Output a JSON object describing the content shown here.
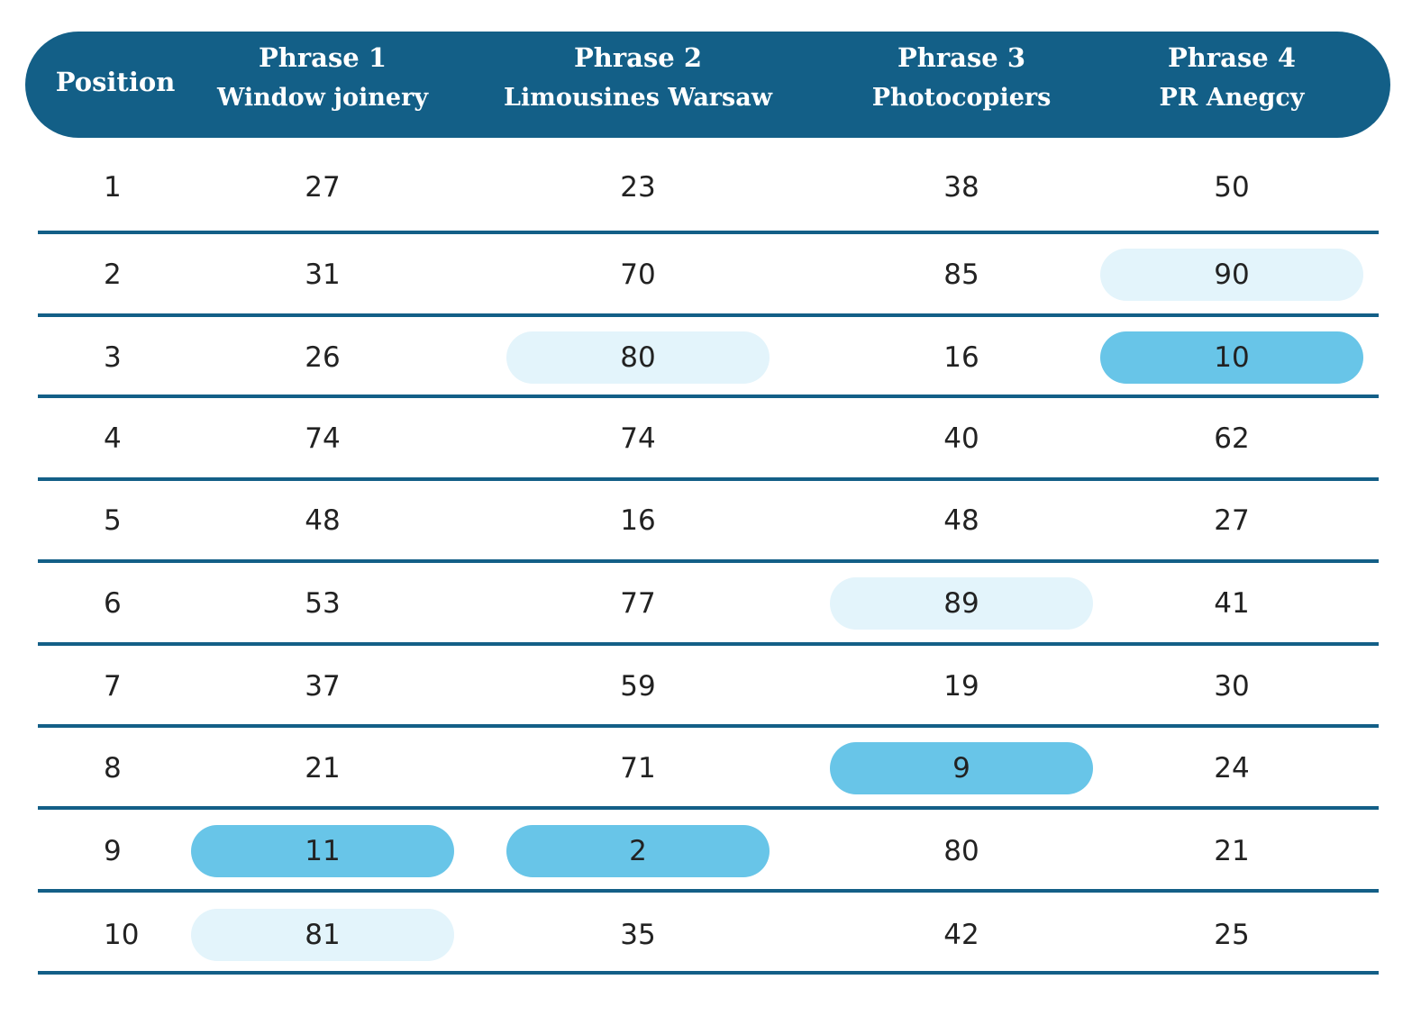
{
  "table": {
    "header": [
      {
        "title": "Position"
      },
      {
        "title": "Phrase 1",
        "subtitle": "Window joinery"
      },
      {
        "title": "Phrase 2",
        "subtitle": "Limousines Warsaw"
      },
      {
        "title": "Phrase 3",
        "subtitle": "Photocopiers"
      },
      {
        "title": "Phrase 4",
        "subtitle": "PR Anegcy"
      }
    ],
    "rows": [
      [
        "1",
        "27",
        "23",
        "38",
        "50"
      ],
      [
        "2",
        "31",
        "70",
        "85",
        {
          "text": "90",
          "fill": "#e3f4fb"
        }
      ],
      [
        "3",
        "26",
        {
          "text": "80",
          "fill": "#e3f4fb"
        },
        "16",
        {
          "text": "10",
          "fill": "#68c5e8"
        }
      ],
      [
        "4",
        "74",
        "74",
        "40",
        "62"
      ],
      [
        "5",
        "48",
        "16",
        "48",
        "27"
      ],
      [
        "6",
        "53",
        "77",
        {
          "text": "89",
          "fill": "#e3f4fb"
        },
        "41"
      ],
      [
        "7",
        "37",
        "59",
        "19",
        "30"
      ],
      [
        "8",
        "21",
        "71",
        {
          "text": "9",
          "fill": "#68c5e8"
        },
        "24"
      ],
      [
        "9",
        {
          "text": "11",
          "fill": "#68c5e8"
        },
        {
          "text": "2",
          "fill": "#68c5e8"
        },
        "80",
        "21"
      ],
      [
        "10",
        {
          "text": "81",
          "fill": "#e3f4fb"
        },
        "35",
        "42",
        "25"
      ]
    ]
  }
}
